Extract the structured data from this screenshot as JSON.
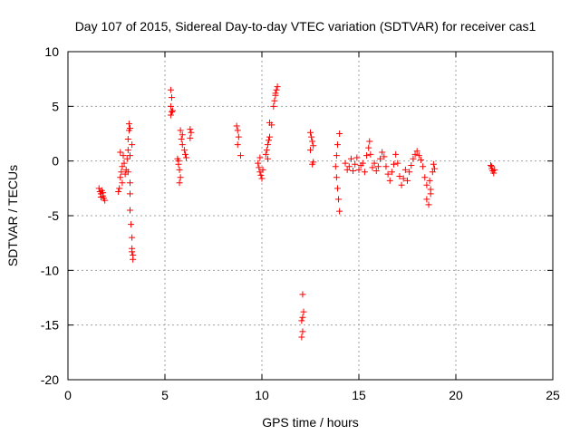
{
  "chart_data": {
    "type": "scatter",
    "title": "Day 107 of 2015, Sidereal Day-to-day VTEC variation (SDTVAR) for receiver cas1",
    "xlabel": "GPS time / hours",
    "ylabel": "SDTVAR / TECUs",
    "xlim": [
      0,
      25
    ],
    "ylim": [
      -20,
      10
    ],
    "xticks": [
      0,
      5,
      10,
      15,
      20,
      25
    ],
    "xtick_labels": [
      "0",
      "5",
      "10",
      "15",
      "20",
      "25"
    ],
    "yticks": [
      10,
      5,
      0,
      -5,
      -10,
      -15,
      -20
    ],
    "ytick_labels": [
      "10",
      "5",
      "0",
      "-5",
      "-10",
      "-15",
      "-20"
    ],
    "grid": true,
    "marker": "+",
    "marker_color": "#ff0000",
    "series": [
      {
        "name": "cas1",
        "points": [
          [
            1.6,
            -2.5
          ],
          [
            1.65,
            -2.8
          ],
          [
            1.7,
            -3.0
          ],
          [
            1.75,
            -2.7
          ],
          [
            1.8,
            -3.2
          ],
          [
            1.85,
            -3.4
          ],
          [
            1.9,
            -3.6
          ],
          [
            1.7,
            -3.3
          ],
          [
            1.8,
            -2.9
          ],
          [
            2.6,
            -2.8
          ],
          [
            2.65,
            -2.5
          ],
          [
            2.7,
            -1.5
          ],
          [
            2.75,
            -1.0
          ],
          [
            2.8,
            -0.5
          ],
          [
            2.85,
            0.5
          ],
          [
            2.9,
            -0.2
          ],
          [
            2.95,
            -1.2
          ],
          [
            2.7,
            0.8
          ],
          [
            2.8,
            -2.0
          ],
          [
            3.0,
            -0.8
          ],
          [
            3.05,
            0.2
          ],
          [
            3.1,
            1.0
          ],
          [
            3.1,
            2.0
          ],
          [
            3.15,
            2.8
          ],
          [
            3.15,
            3.4
          ],
          [
            3.2,
            3.0
          ],
          [
            3.1,
            -1.0
          ],
          [
            3.2,
            -2.0
          ],
          [
            3.2,
            -3.0
          ],
          [
            3.2,
            -4.5
          ],
          [
            3.25,
            -5.8
          ],
          [
            3.3,
            -7.0
          ],
          [
            3.3,
            -8.0
          ],
          [
            3.35,
            -8.6
          ],
          [
            3.35,
            -9.0
          ],
          [
            3.3,
            -8.3
          ],
          [
            3.2,
            0.5
          ],
          [
            3.3,
            1.5
          ],
          [
            5.3,
            6.5
          ],
          [
            5.35,
            5.8
          ],
          [
            5.3,
            5.0
          ],
          [
            5.35,
            4.5
          ],
          [
            5.3,
            4.2
          ],
          [
            5.4,
            4.6
          ],
          [
            5.65,
            0.2
          ],
          [
            5.7,
            -0.3
          ],
          [
            5.75,
            -0.8
          ],
          [
            5.8,
            -1.5
          ],
          [
            5.75,
            -2.0
          ],
          [
            5.7,
            0.0
          ],
          [
            5.8,
            2.8
          ],
          [
            5.85,
            2.0
          ],
          [
            5.9,
            1.5
          ],
          [
            6.0,
            1.0
          ],
          [
            6.05,
            0.6
          ],
          [
            6.1,
            0.3
          ],
          [
            5.9,
            2.4
          ],
          [
            6.3,
            2.9
          ],
          [
            6.35,
            2.6
          ],
          [
            6.3,
            2.1
          ],
          [
            8.7,
            3.2
          ],
          [
            8.75,
            2.8
          ],
          [
            8.8,
            2.2
          ],
          [
            8.75,
            1.5
          ],
          [
            8.9,
            0.5
          ],
          [
            9.8,
            -0.2
          ],
          [
            9.85,
            -0.6
          ],
          [
            9.9,
            -1.0
          ],
          [
            9.95,
            -1.3
          ],
          [
            10.0,
            -1.6
          ],
          [
            10.05,
            -0.8
          ],
          [
            9.9,
            0.3
          ],
          [
            10.2,
            0.6
          ],
          [
            10.25,
            1.0
          ],
          [
            10.3,
            1.5
          ],
          [
            10.35,
            1.9
          ],
          [
            10.4,
            2.2
          ],
          [
            10.3,
            0.2
          ],
          [
            10.4,
            3.5
          ],
          [
            10.5,
            3.3
          ],
          [
            10.6,
            5.0
          ],
          [
            10.65,
            5.5
          ],
          [
            10.7,
            6.0
          ],
          [
            10.75,
            6.5
          ],
          [
            10.8,
            6.8
          ],
          [
            10.7,
            6.2
          ],
          [
            12.1,
            -12.2
          ],
          [
            12.15,
            -13.8
          ],
          [
            12.1,
            -14.3
          ],
          [
            12.05,
            -14.6
          ],
          [
            12.1,
            -15.6
          ],
          [
            12.05,
            -16.1
          ],
          [
            12.5,
            2.6
          ],
          [
            12.55,
            2.2
          ],
          [
            12.6,
            1.8
          ],
          [
            12.65,
            1.4
          ],
          [
            12.5,
            1.0
          ],
          [
            12.6,
            -0.3
          ],
          [
            12.65,
            -0.1
          ],
          [
            13.8,
            -0.5
          ],
          [
            13.85,
            -1.5
          ],
          [
            13.9,
            -2.5
          ],
          [
            13.95,
            -3.5
          ],
          [
            14.0,
            -4.6
          ],
          [
            13.9,
            1.5
          ],
          [
            14.0,
            2.5
          ],
          [
            13.85,
            0.5
          ],
          [
            14.3,
            -0.2
          ],
          [
            14.4,
            -0.8
          ],
          [
            14.5,
            -0.5
          ],
          [
            14.6,
            0.2
          ],
          [
            14.7,
            -0.9
          ],
          [
            14.8,
            -0.3
          ],
          [
            14.9,
            0.3
          ],
          [
            15.0,
            -0.8
          ],
          [
            15.1,
            -0.4
          ],
          [
            15.2,
            -0.2
          ],
          [
            15.3,
            -1.0
          ],
          [
            15.4,
            0.5
          ],
          [
            15.5,
            1.2
          ],
          [
            15.55,
            1.8
          ],
          [
            15.6,
            0.6
          ],
          [
            15.7,
            -0.6
          ],
          [
            15.8,
            -0.2
          ],
          [
            15.9,
            -0.9
          ],
          [
            16.0,
            -0.5
          ],
          [
            16.1,
            0.2
          ],
          [
            16.2,
            0.8
          ],
          [
            16.3,
            0.4
          ],
          [
            16.4,
            -0.5
          ],
          [
            16.5,
            -1.2
          ],
          [
            16.6,
            -1.8
          ],
          [
            16.7,
            -1.0
          ],
          [
            16.8,
            -0.3
          ],
          [
            16.9,
            0.6
          ],
          [
            17.0,
            -0.2
          ],
          [
            17.1,
            -1.4
          ],
          [
            17.2,
            -2.2
          ],
          [
            17.3,
            -1.6
          ],
          [
            17.4,
            -0.8
          ],
          [
            17.5,
            -1.8
          ],
          [
            17.6,
            -1.0
          ],
          [
            17.7,
            -0.4
          ],
          [
            17.8,
            0.2
          ],
          [
            17.9,
            0.6
          ],
          [
            18.0,
            0.9
          ],
          [
            18.1,
            0.5
          ],
          [
            18.2,
            0.1
          ],
          [
            18.3,
            -0.5
          ],
          [
            18.4,
            -1.5
          ],
          [
            18.5,
            -2.2
          ],
          [
            18.6,
            -4.0
          ],
          [
            18.7,
            -3.0
          ],
          [
            18.65,
            -1.8
          ],
          [
            18.8,
            -1.0
          ],
          [
            18.85,
            -0.3
          ],
          [
            18.9,
            -0.7
          ],
          [
            18.5,
            -3.5
          ],
          [
            18.7,
            -2.6
          ],
          [
            21.8,
            -0.4
          ],
          [
            21.85,
            -0.7
          ],
          [
            21.9,
            -0.9
          ],
          [
            21.95,
            -1.1
          ],
          [
            22.0,
            -0.8
          ],
          [
            21.85,
            -0.5
          ]
        ]
      }
    ]
  }
}
